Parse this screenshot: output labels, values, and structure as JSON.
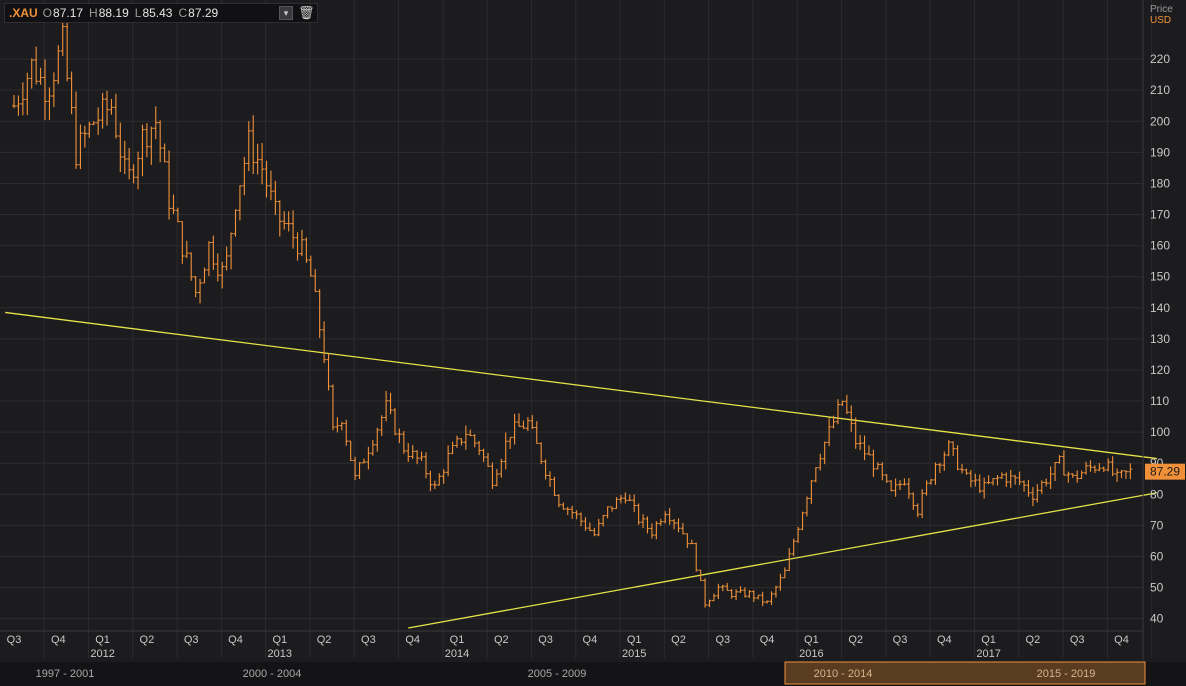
{
  "legend": {
    "symbol": ".XAU",
    "open_label": "O",
    "open": "87.17",
    "high_label": "H",
    "high": "88.19",
    "low_label": "L",
    "low": "85.43",
    "close_label": "C",
    "close": "87.29",
    "dropdown_icon": "chevron-down-icon",
    "delete_icon": "trash-icon"
  },
  "price_header": {
    "label": "Price",
    "currency": "USD"
  },
  "colors": {
    "price": "#f0913a",
    "trendline": "#e5e24a",
    "grid": "#2c2c2e",
    "background": "#1c1c1e",
    "last_price_tag": "#f0913a"
  },
  "chart_data": {
    "type": "line",
    "style": "ohlc",
    "grid": true,
    "y_range": [
      37,
      230
    ],
    "y_ticks": [
      40,
      50,
      60,
      70,
      80,
      90,
      100,
      110,
      120,
      130,
      140,
      150,
      160,
      170,
      180,
      190,
      200,
      210,
      220
    ],
    "last_price": "87.29",
    "x_quarters": [
      "Q3",
      "Q4",
      "Q1",
      "Q2",
      "Q3",
      "Q4",
      "Q1",
      "Q2",
      "Q3",
      "Q4",
      "Q1",
      "Q2",
      "Q3",
      "Q4",
      "Q1",
      "Q2",
      "Q3",
      "Q4",
      "Q1",
      "Q2",
      "Q3",
      "Q4",
      "Q1",
      "Q2",
      "Q3",
      "Q4"
    ],
    "x_years": [
      {
        "label": "2012",
        "at_quarter": 2
      },
      {
        "label": "2013",
        "at_quarter": 6
      },
      {
        "label": "2014",
        "at_quarter": 10
      },
      {
        "label": "2015",
        "at_quarter": 14
      },
      {
        "label": "2016",
        "at_quarter": 18
      },
      {
        "label": "2017",
        "at_quarter": 22
      }
    ],
    "series": [
      {
        "x": [
          0,
          0.4,
          0.75,
          1.1,
          1.4,
          1.8,
          2.2,
          2.55,
          2.9,
          3.2,
          3.5,
          3.8,
          4.1,
          4.4,
          4.75,
          5.0,
          5.3,
          5.6,
          5.9,
          6.2,
          6.45,
          6.7,
          6.85,
          7.0,
          7.2,
          7.4,
          7.7,
          8.0,
          8.4,
          8.8,
          9.2,
          9.5,
          9.8,
          10.2,
          10.5,
          10.8,
          11.2,
          11.6,
          12.0,
          12.3,
          12.7,
          13.1,
          13.4,
          13.8,
          14.1,
          14.4,
          14.7,
          15.0,
          15.3,
          15.6,
          15.9,
          16.2,
          16.6,
          17.0,
          17.4,
          17.8,
          18.1,
          18.4,
          18.7,
          19.0,
          19.4,
          19.8,
          20.1,
          20.4,
          20.8,
          21.1,
          21.5,
          21.9,
          22.3,
          22.7,
          23.0,
          23.3,
          23.6,
          23.9,
          24.2,
          24.6,
          24.9,
          25.2
        ],
        "close": [
          205,
          218,
          210,
          225,
          190,
          200,
          205,
          180,
          195,
          200,
          175,
          160,
          145,
          160,
          150,
          175,
          193,
          185,
          170,
          165,
          160,
          150,
          138,
          125,
          100,
          105,
          85,
          95,
          108,
          95,
          90,
          82,
          92,
          100,
          95,
          85,
          100,
          103,
          88,
          78,
          73,
          67,
          75,
          80,
          72,
          68,
          75,
          70,
          63,
          45,
          50,
          48,
          48,
          45,
          55,
          75,
          90,
          100,
          110,
          97,
          90,
          80,
          85,
          75,
          90,
          95,
          85,
          82,
          86,
          84,
          80,
          85,
          90,
          85,
          88,
          90,
          85,
          87.29
        ]
      }
    ],
    "trendlines": [
      {
        "name": "upper",
        "from": {
          "x": -0.2,
          "y": 138.5
        },
        "to": {
          "x": 25.8,
          "y": 91.5
        }
      },
      {
        "name": "lower",
        "from": {
          "x": 8.9,
          "y": 37
        },
        "to": {
          "x": 25.8,
          "y": 80.5
        }
      }
    ]
  },
  "navigator": {
    "ranges": [
      "1997 - 2001",
      "2000 - 2004",
      "2005 - 2009",
      "2010 - 2014",
      "2015 - 2019"
    ]
  }
}
